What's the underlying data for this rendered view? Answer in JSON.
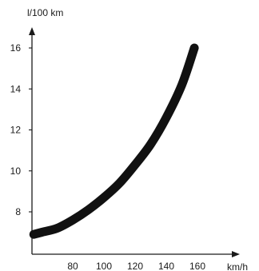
{
  "chart_data": {
    "type": "line",
    "title": "",
    "xlabel": "km/h",
    "ylabel": "l/100 km",
    "xlim": [
      50,
      180
    ],
    "ylim": [
      6,
      17
    ],
    "x_ticks": [
      80,
      100,
      120,
      140,
      160
    ],
    "y_ticks": [
      8,
      10,
      12,
      14,
      16
    ],
    "grid": false,
    "legend": "none",
    "series": [
      {
        "color": "#111111",
        "x": [
          55,
          60,
          70,
          80,
          90,
          100,
          110,
          120,
          130,
          140,
          150,
          158
        ],
        "y": [
          6.9,
          7.0,
          7.2,
          7.6,
          8.1,
          8.7,
          9.4,
          10.3,
          11.3,
          12.6,
          14.2,
          16.0
        ]
      }
    ]
  }
}
